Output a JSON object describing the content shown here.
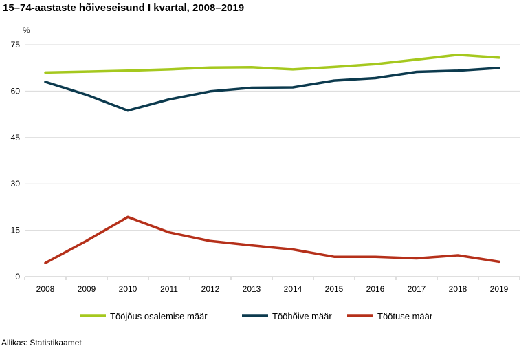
{
  "title": "15–74-aastaste hõiveseisund I kvartal, 2008–2019",
  "source": "Allikas: Statistikaamet",
  "chart_data": {
    "type": "line",
    "title": "15–74-aastaste hõiveseisund I kvartal, 2008–2019",
    "ylabel": "%",
    "xlabel": "",
    "x": [
      "2008",
      "2009",
      "2010",
      "2011",
      "2012",
      "2013",
      "2014",
      "2015",
      "2016",
      "2017",
      "2018",
      "2019"
    ],
    "yticks": [
      "0",
      "15",
      "30",
      "45",
      "60",
      "75"
    ],
    "ylim": [
      0,
      75
    ],
    "grid": true,
    "legend_position": "bottom",
    "series": [
      {
        "name": "Tööjõus osalemise määr",
        "color": "#a5c81e",
        "values": [
          66.0,
          66.3,
          66.6,
          67.0,
          67.6,
          67.7,
          67.0,
          67.8,
          68.7,
          70.2,
          71.7,
          70.8
        ]
      },
      {
        "name": "Tööhõive määr",
        "color": "#0c3a4e",
        "values": [
          63.0,
          58.8,
          53.7,
          57.3,
          59.9,
          61.1,
          61.2,
          63.4,
          64.2,
          66.2,
          66.6,
          67.5
        ]
      },
      {
        "name": "Töötuse määr",
        "color": "#b5301a",
        "values": [
          4.4,
          11.6,
          19.3,
          14.3,
          11.5,
          10.1,
          8.8,
          6.4,
          6.4,
          5.9,
          6.9,
          4.8
        ]
      }
    ]
  }
}
